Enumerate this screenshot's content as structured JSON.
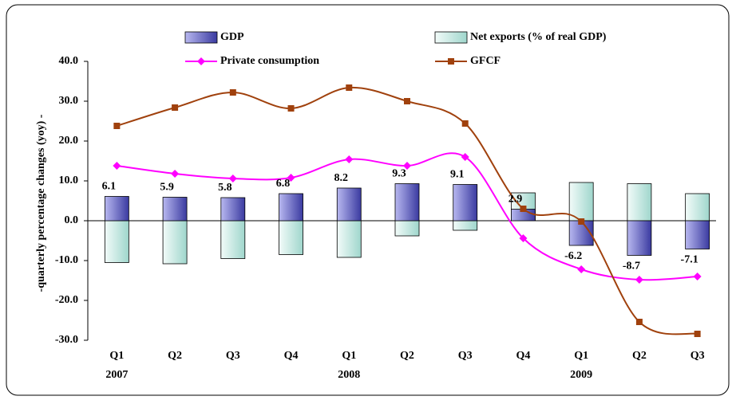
{
  "chart_data": {
    "type": "bar_line",
    "y_axis_label": "-quarterly percentage changes (yoy) -",
    "categories": [
      "Q1",
      "Q2",
      "Q3",
      "Q4",
      "Q1",
      "Q2",
      "Q3",
      "Q4",
      "Q1",
      "Q2",
      "Q3"
    ],
    "years": [
      "2007",
      null,
      null,
      null,
      "2008",
      null,
      null,
      null,
      "2009",
      null,
      null
    ],
    "ylim": [
      -30,
      40
    ],
    "yticks": [
      {
        "value": -30,
        "label": "-30.0"
      },
      {
        "value": -20,
        "label": "-20.0"
      },
      {
        "value": -10,
        "label": "-10.0"
      },
      {
        "value": 0,
        "label": "0.0"
      },
      {
        "value": 10,
        "label": "10.0"
      },
      {
        "value": 20,
        "label": "20.0"
      },
      {
        "value": 30,
        "label": "30.0"
      },
      {
        "value": 40,
        "label": "40.0"
      }
    ],
    "series": [
      {
        "name": "GDP",
        "kind": "bar",
        "color": "#6a6ad0",
        "values": [
          6.1,
          5.9,
          5.8,
          6.8,
          8.2,
          9.3,
          9.1,
          2.9,
          -6.2,
          -8.7,
          -7.1
        ]
      },
      {
        "name": "Net exports (% of real GDP)",
        "kind": "bar",
        "color": "#c6ebe5",
        "values": [
          -10.5,
          -10.8,
          -9.5,
          -8.5,
          -9.2,
          -3.8,
          -2.4,
          7.0,
          9.6,
          9.3,
          6.8
        ]
      },
      {
        "name": "Private consumption",
        "kind": "line",
        "marker": "diamond",
        "color": "#ff00ff",
        "values": [
          13.8,
          11.8,
          10.6,
          10.8,
          15.4,
          13.8,
          16.0,
          -4.4,
          -12.2,
          -14.8,
          -14.0
        ]
      },
      {
        "name": "GFCF",
        "kind": "line",
        "marker": "square",
        "color": "#a0410d",
        "values": [
          23.8,
          28.4,
          32.2,
          28.2,
          33.4,
          30.0,
          24.4,
          3.0,
          -0.2,
          -25.4,
          -28.4
        ]
      }
    ]
  }
}
